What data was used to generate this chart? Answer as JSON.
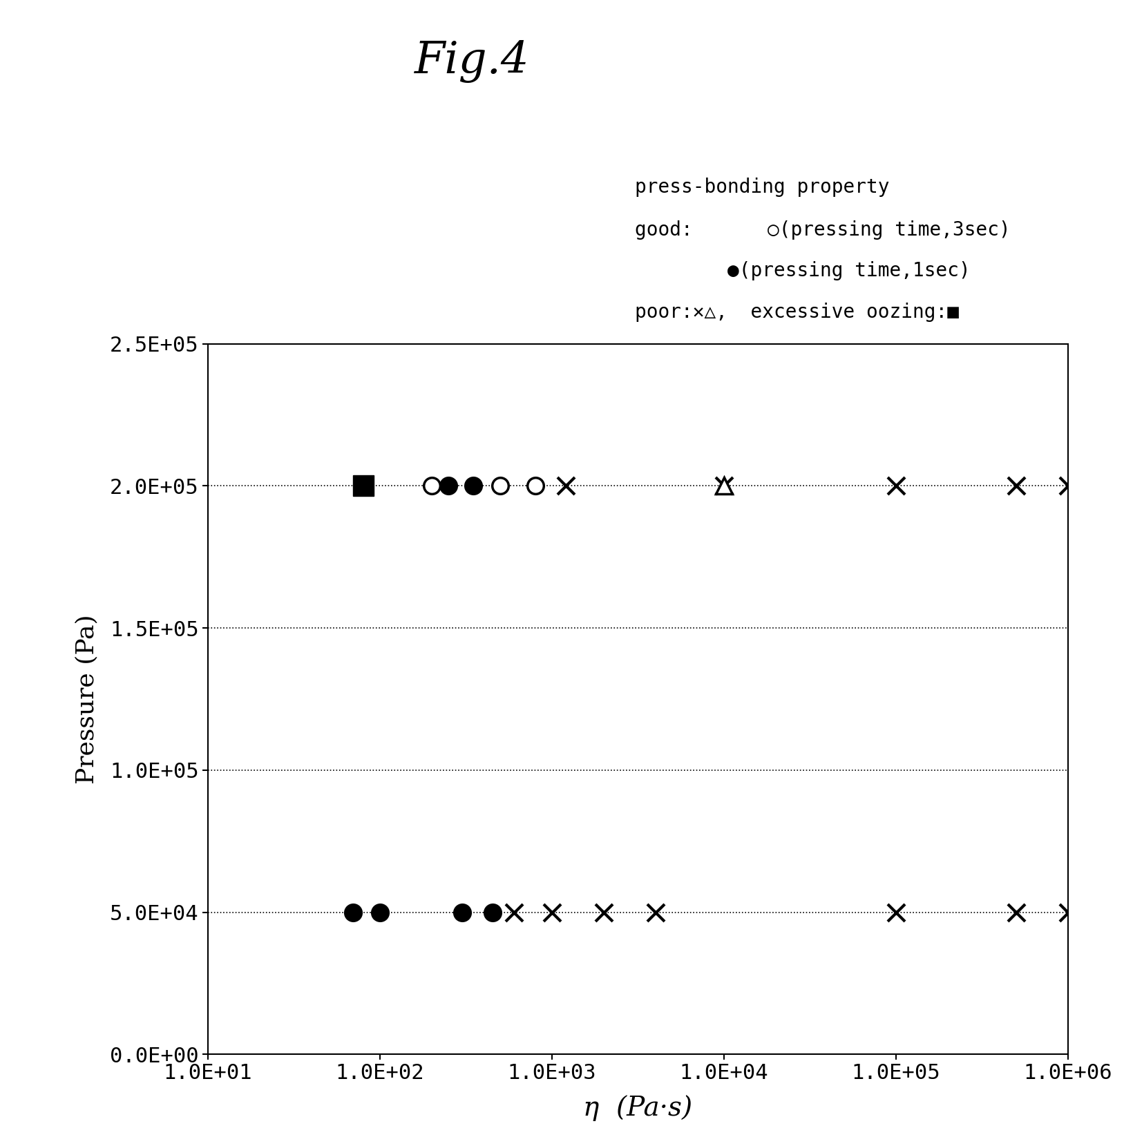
{
  "title": "Fig.4",
  "xlabel": "η  (Pa·s)",
  "ylabel": "Pressure (Pa)",
  "ylim": [
    0,
    250000
  ],
  "yticks": [
    0,
    50000,
    100000,
    150000,
    200000,
    250000
  ],
  "ytick_labels": [
    "0.0E+00",
    "5.0E+04",
    "1.0E+05",
    "1.5E+05",
    "2.0E+05",
    "2.5E+05"
  ],
  "xtick_values": [
    10,
    100,
    1000,
    10000,
    100000,
    1000000
  ],
  "xtick_labels": [
    "1.0E+01",
    "1.0E+02",
    "1.0E+03",
    "1.0E+04",
    "1.0E+05",
    "1.0E+06"
  ],
  "data_200000": {
    "y": 200000,
    "square_black": [
      80
    ],
    "circle_open": [
      200,
      500,
      800
    ],
    "circle_filled": [
      250,
      350
    ],
    "cross": [
      1200,
      10000,
      100000,
      500000,
      1000000
    ],
    "triangle_open": [
      10000
    ]
  },
  "data_50000": {
    "y": 50000,
    "circle_filled": [
      70,
      100,
      300,
      450
    ],
    "cross": [
      600,
      1000,
      2000,
      4000,
      100000,
      500000,
      1000000
    ]
  },
  "background_color": "#ffffff"
}
